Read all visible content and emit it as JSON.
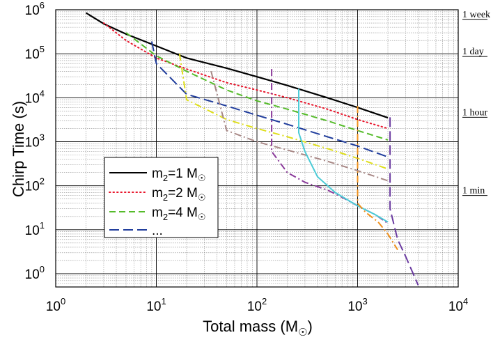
{
  "chart_data": {
    "type": "line",
    "xlabel": "Total mass (M",
    "xlabel_sub": "☉",
    "xlabel_close": ")",
    "ylabel": "Chirp Time (s)",
    "xscale": "log",
    "yscale": "log",
    "xlim": [
      1,
      10000
    ],
    "ylim": [
      0.5,
      1000000
    ],
    "grid": true,
    "x_ticks": [
      {
        "value": 1,
        "base": "10",
        "exp": "0"
      },
      {
        "value": 10,
        "base": "10",
        "exp": "1"
      },
      {
        "value": 100,
        "base": "10",
        "exp": "2"
      },
      {
        "value": 1000,
        "base": "10",
        "exp": "3"
      },
      {
        "value": 10000,
        "base": "10",
        "exp": "4"
      }
    ],
    "y_ticks": [
      {
        "value": 1,
        "base": "10",
        "exp": "0"
      },
      {
        "value": 10,
        "base": "10",
        "exp": "1"
      },
      {
        "value": 100,
        "base": "10",
        "exp": "2"
      },
      {
        "value": 1000,
        "base": "10",
        "exp": "3"
      },
      {
        "value": 10000,
        "base": "10",
        "exp": "4"
      },
      {
        "value": 100000,
        "base": "10",
        "exp": "5"
      },
      {
        "value": 1000000,
        "base": "10",
        "exp": "6"
      }
    ],
    "time_markers": [
      {
        "label": "1 week",
        "value": 604800
      },
      {
        "label": "1 day",
        "value": 86400
      },
      {
        "label": "1 hour",
        "value": 3600
      },
      {
        "label": "1 min",
        "value": 60
      }
    ],
    "legend": {
      "position": "lower-left",
      "entries": [
        {
          "prefix": "m",
          "sub": "2",
          "mid": "=1 M",
          "subsym": "☉",
          "series": 0
        },
        {
          "prefix": "m",
          "sub": "2",
          "mid": "=2 M",
          "subsym": "☉",
          "series": 1
        },
        {
          "prefix": "m",
          "sub": "2",
          "mid": "=4 M",
          "subsym": "☉",
          "series": 2
        },
        {
          "prefix": "...",
          "sub": "",
          "mid": "",
          "subsym": "",
          "series": 3
        }
      ]
    },
    "series": [
      {
        "color": "#000000",
        "dash": "solid",
        "x": [
          2,
          3,
          5,
          10,
          20,
          50,
          100,
          200,
          500,
          1000,
          2000
        ],
        "y": [
          850000,
          480000,
          280000,
          150000,
          80000,
          47000,
          30000,
          19000,
          10000,
          6000,
          3500
        ]
      },
      {
        "color": "#e8142a",
        "dash": "dot",
        "x": [
          3,
          5,
          10,
          20,
          50,
          100,
          200,
          500,
          1000,
          2000
        ],
        "y": [
          500000,
          200000,
          80000,
          45000,
          22000,
          15000,
          10000,
          5500,
          3200,
          2000
        ]
      },
      {
        "color": "#55bb2a",
        "dash": "dash",
        "x": [
          5,
          10,
          20,
          50,
          100,
          200,
          500,
          1000,
          2000
        ],
        "y": [
          300000,
          90000,
          40000,
          15000,
          8500,
          5500,
          3000,
          1800,
          1100
        ]
      },
      {
        "color": "#1f3c9c",
        "dash": "longdash",
        "x": [
          9,
          10,
          20,
          50,
          100,
          200,
          500,
          1000,
          2000
        ],
        "y": [
          190000,
          60000,
          12000,
          6500,
          4000,
          2500,
          1300,
          800,
          450
        ]
      },
      {
        "color": "#dede1a",
        "dash": "dashdot",
        "x": [
          17,
          20,
          50,
          100,
          200,
          500,
          1000,
          2000
        ],
        "y": [
          100000,
          9000,
          3200,
          2000,
          1300,
          700,
          420,
          240
        ]
      },
      {
        "color": "#a88886",
        "dash": "dashdot",
        "x": [
          35,
          50,
          100,
          200,
          500,
          1000,
          2000
        ],
        "y": [
          40000,
          1800,
          1000,
          650,
          360,
          220,
          130
        ]
      },
      {
        "color": "#8a3a9a",
        "dash": "dashdot",
        "x": [
          140,
          140,
          200,
          300,
          500,
          700,
          1000,
          1500,
          2000
        ],
        "y": [
          45000,
          600,
          200,
          120,
          80,
          55,
          35,
          22,
          14
        ]
      },
      {
        "color": "#4ccbd6",
        "dash": "solid",
        "x": [
          260,
          260,
          300,
          400,
          600,
          1000,
          1500,
          2000
        ],
        "y": [
          16000,
          1600,
          600,
          160,
          70,
          35,
          22,
          15
        ]
      },
      {
        "color": "#f0901a",
        "dash": "dashdot",
        "x": [
          1000,
          1000,
          1200,
          1600,
          2000,
          2500
        ],
        "y": [
          6500,
          40,
          25,
          15,
          8,
          3.5
        ]
      },
      {
        "color": "#6a3aa0",
        "dash": "longdash",
        "x": [
          2100,
          2100,
          2500,
          3000,
          4000
        ],
        "y": [
          3600,
          30,
          6,
          2.5,
          0.55
        ]
      }
    ]
  }
}
